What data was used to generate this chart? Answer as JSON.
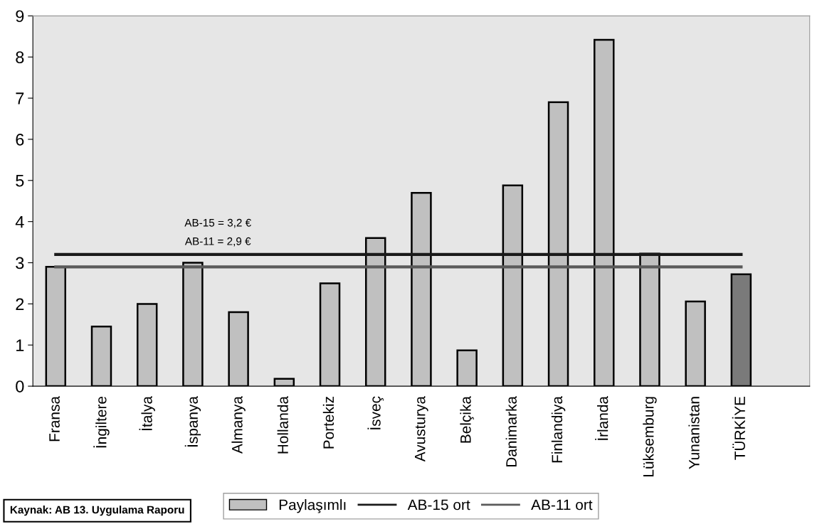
{
  "chart_data": {
    "type": "bar",
    "categories": [
      "Fransa",
      "İngiltere",
      "İtalya",
      "İspanya",
      "Almanya",
      "Hollanda",
      "Portekiz",
      "İsveç",
      "Avusturya",
      "Belçika",
      "Danimarka",
      "Finlandiya",
      "İrlanda",
      "Lüksemburg",
      "Yunanistan",
      "TÜRKİYE"
    ],
    "series": [
      {
        "name": "Paylaşımlı",
        "color": "#c0c0c0",
        "colors": [
          "#c0c0c0",
          "#c0c0c0",
          "#c0c0c0",
          "#c0c0c0",
          "#c0c0c0",
          "#c0c0c0",
          "#c0c0c0",
          "#c0c0c0",
          "#c0c0c0",
          "#c0c0c0",
          "#c0c0c0",
          "#c0c0c0",
          "#c0c0c0",
          "#c0c0c0",
          "#c0c0c0",
          "#7a7a7a"
        ],
        "values": [
          2.9,
          1.45,
          2.0,
          3.0,
          1.8,
          0.18,
          2.5,
          3.6,
          4.7,
          0.87,
          4.88,
          6.9,
          8.42,
          3.22,
          2.06,
          2.72
        ]
      },
      {
        "name": "AB-15 ort",
        "type": "line",
        "color": "#1a1a1a",
        "values": [
          3.2,
          3.2,
          3.2,
          3.2,
          3.2,
          3.2,
          3.2,
          3.2,
          3.2,
          3.2,
          3.2,
          3.2,
          3.2,
          3.2,
          3.2,
          3.2
        ]
      },
      {
        "name": "AB-11 ort",
        "type": "line",
        "color": "#5a5a5a",
        "values": [
          2.9,
          2.9,
          2.9,
          2.9,
          2.9,
          2.9,
          2.9,
          2.9,
          2.9,
          2.9,
          2.9,
          2.9,
          2.9,
          2.9,
          2.9,
          2.9
        ]
      }
    ],
    "ylim": [
      0,
      9
    ],
    "yticks": [
      0,
      1,
      2,
      3,
      4,
      5,
      6,
      7,
      8,
      9
    ],
    "grid": false,
    "legend": "bottom",
    "marker": "none",
    "line_style": "solid",
    "annotations": [
      "AB-15 = 3,2 €",
      "AB-11 = 2,9 €",
      "Kaynak: AB 13. Uygulama Raporu"
    ]
  }
}
